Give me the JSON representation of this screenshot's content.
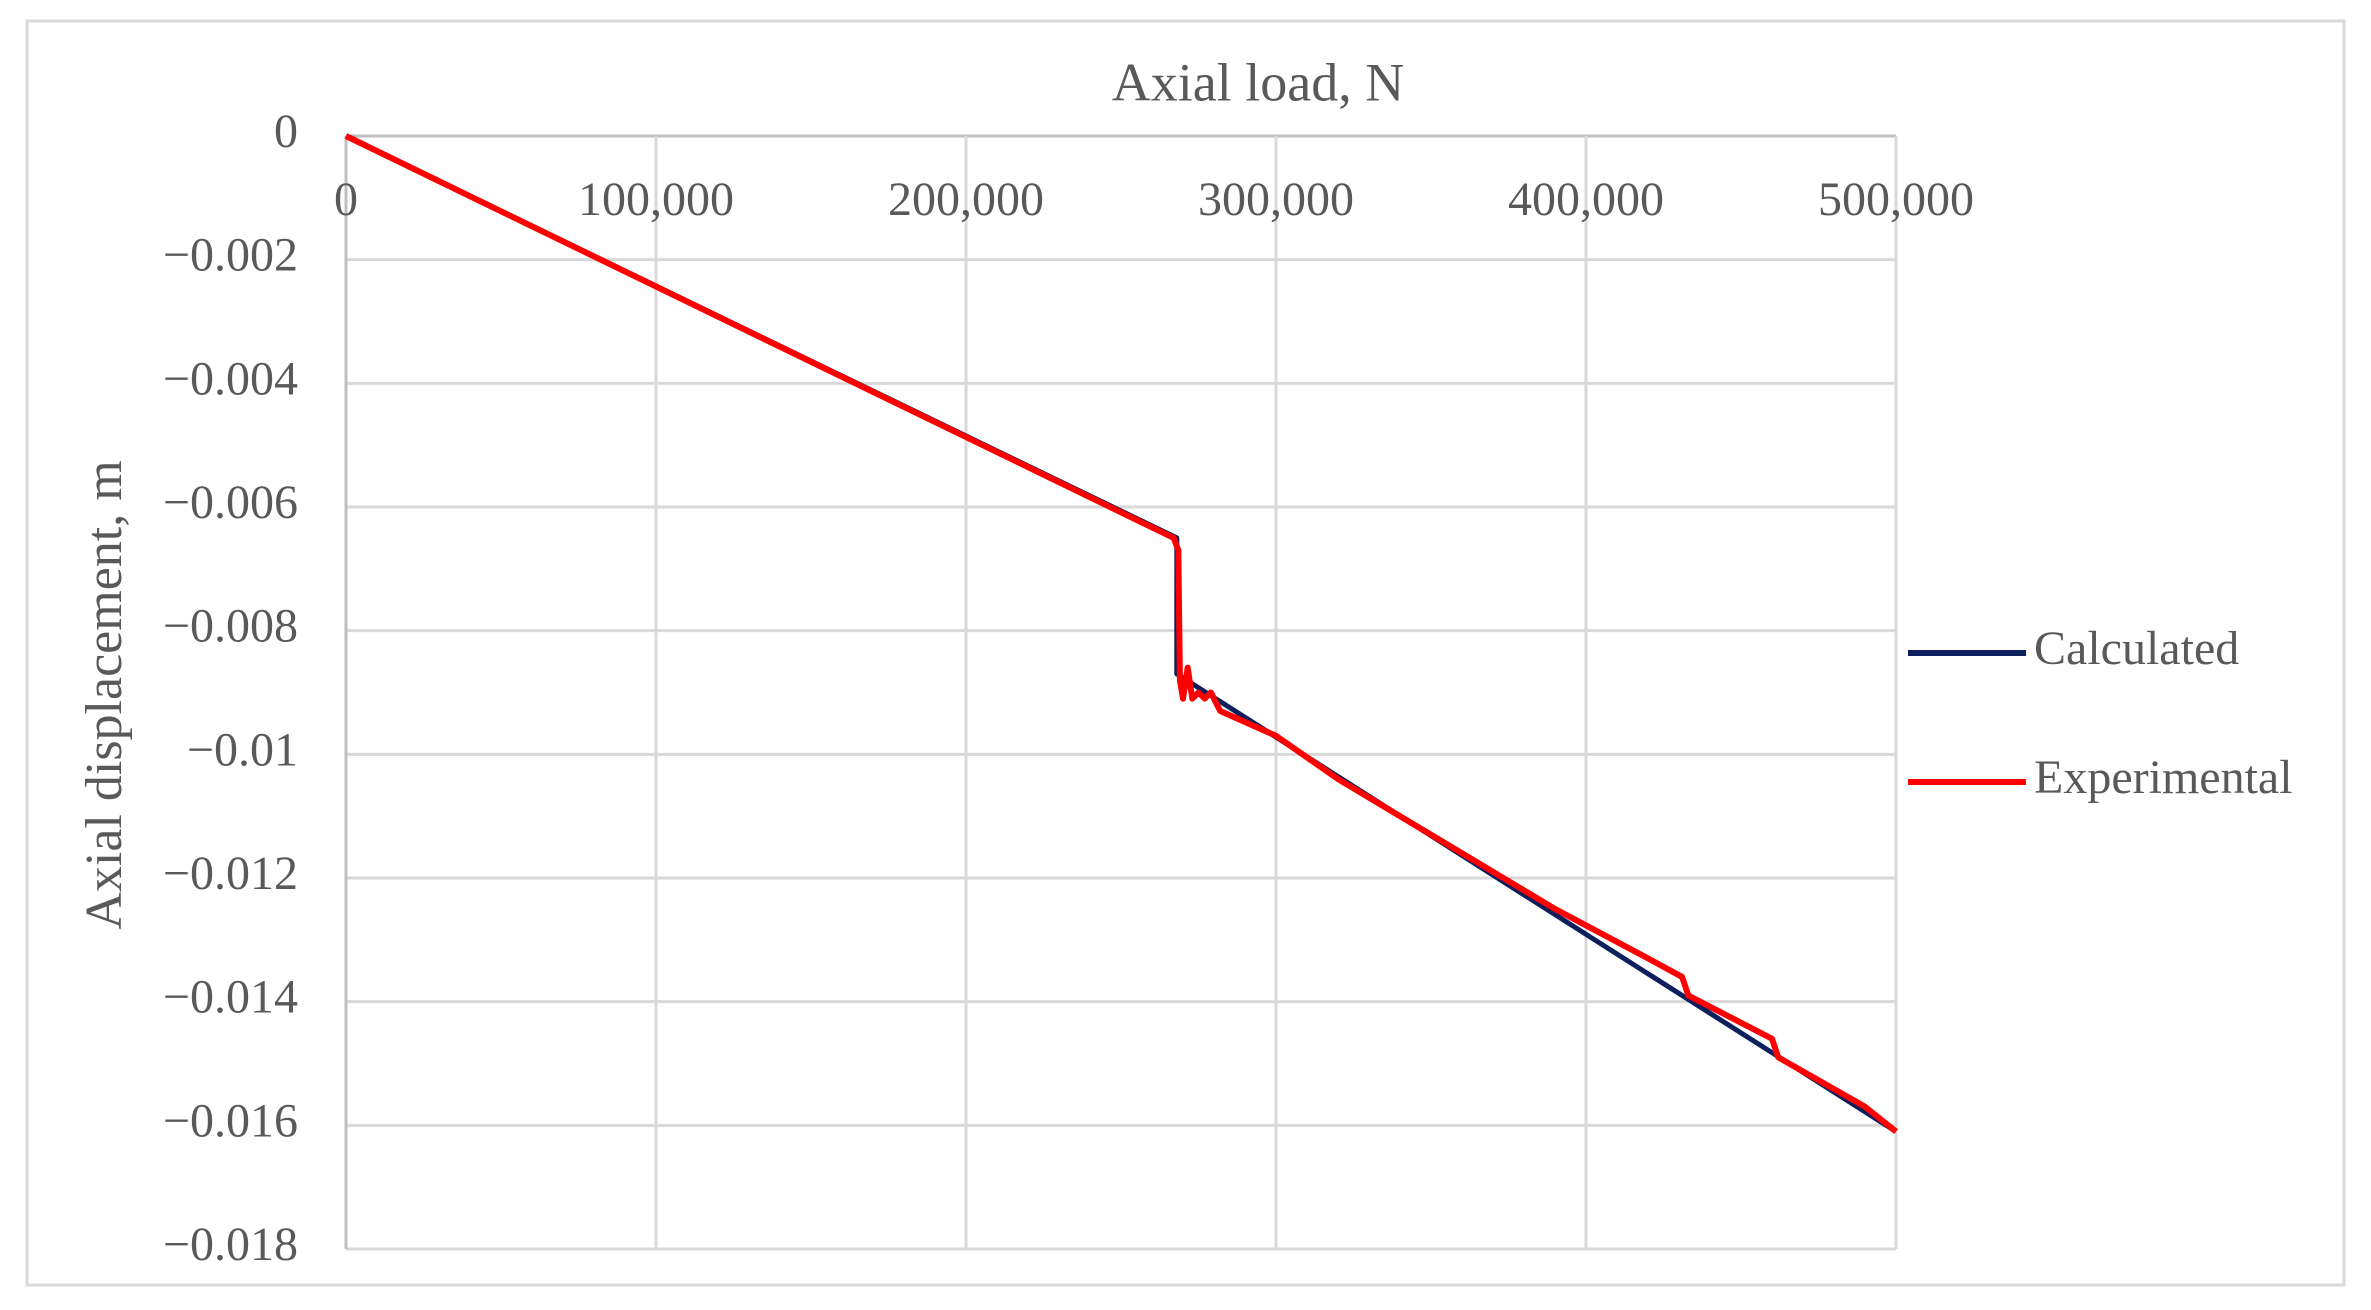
{
  "chart_data": {
    "type": "line",
    "title": "Axial load, N",
    "y_label": "Axial displacement, m",
    "xlim": [
      0,
      500000
    ],
    "xticks": [
      0,
      {
        "value": 100000,
        "label": "100,000"
      },
      {
        "value": 200000,
        "label": "200,000"
      },
      {
        "value": 300000,
        "label": "300,000"
      },
      {
        "value": 400000,
        "label": "400,000"
      },
      {
        "value": 500000,
        "label": "500,000"
      }
    ],
    "ylim": [
      -0.018,
      0
    ],
    "yticks": [
      0,
      {
        "value": -0.002,
        "label": "−0.002"
      },
      {
        "value": -0.004,
        "label": "−0.004"
      },
      {
        "value": -0.006,
        "label": "−0.006"
      },
      {
        "value": -0.008,
        "label": "−0.008"
      },
      {
        "value": -0.01,
        "label": "−0.01"
      },
      {
        "value": -0.012,
        "label": "−0.012"
      },
      {
        "value": -0.014,
        "label": "−0.014"
      },
      {
        "value": -0.016,
        "label": "−0.016"
      },
      {
        "value": -0.018,
        "label": "−0.018"
      }
    ],
    "grid": true,
    "legend": "right",
    "series": [
      {
        "name": "Calculated",
        "color": "#0d1f5c",
        "x": [
          0,
          268000,
          268000,
          500000
        ],
        "values": [
          0,
          -0.0065,
          -0.0087,
          -0.0161
        ]
      },
      {
        "name": "Experimental",
        "color": "#ff0000",
        "x": [
          0,
          267000,
          268500,
          269000,
          270000,
          271500,
          273000,
          275000,
          277000,
          279000,
          282000,
          300000,
          320000,
          350000,
          390000,
          420000,
          431000,
          433000,
          460000,
          462000,
          490000,
          500000
        ],
        "values": [
          0,
          -0.0065,
          -0.0067,
          -0.0088,
          -0.0091,
          -0.0086,
          -0.0091,
          -0.009,
          -0.0091,
          -0.009,
          -0.0093,
          -0.0097,
          -0.0104,
          -0.0113,
          -0.0125,
          -0.0133,
          -0.0136,
          -0.0139,
          -0.0146,
          -0.0149,
          -0.0157,
          -0.0161
        ]
      }
    ]
  }
}
